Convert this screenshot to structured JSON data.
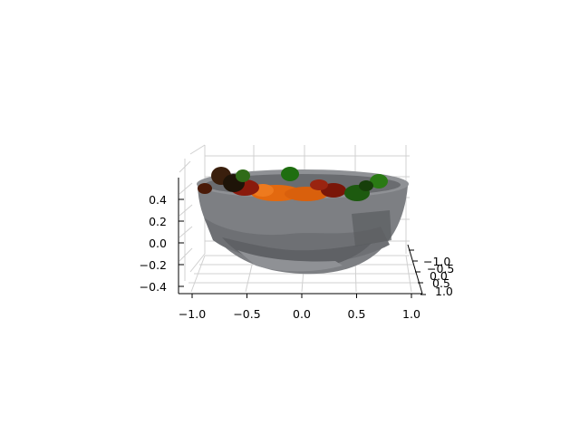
{
  "chart_data": {
    "type": "surface3d",
    "title": "",
    "xlabel": "",
    "ylabel": "",
    "zlabel": "",
    "x_ticks": [
      "−1.0",
      "−0.5",
      "0.0",
      "0.5",
      "1.0"
    ],
    "y_ticks": [
      "−1.0",
      "−0.5",
      "0.0",
      "0.5",
      "1.0"
    ],
    "z_ticks": [
      "0.4",
      "0.2",
      "0.0",
      "−0.2",
      "−0.4"
    ],
    "xlim": [
      -1.0,
      1.0
    ],
    "ylim": [
      -1.0,
      1.0
    ],
    "zlim": [
      -0.5,
      0.5
    ],
    "grid": true,
    "objects": [
      {
        "name": "bowl",
        "color": "#7d7f83"
      },
      {
        "name": "oranges",
        "color": "#e3690f"
      },
      {
        "name": "red fruit",
        "color": "#8a1a0c"
      },
      {
        "name": "green fruit",
        "color": "#1f6e10"
      },
      {
        "name": "dark fruit",
        "color": "#2b1a0c"
      }
    ],
    "colors": {
      "bowl_dark": "#5e6064",
      "bowl_mid": "#7d7f83",
      "bowl_light": "#9a9ca0",
      "rim": "#8f9195",
      "orange": "#e3690f",
      "red": "#8a1a0c",
      "green": "#1f6e10",
      "dark": "#2b1a0c",
      "grid": "#d0d0d0",
      "axis": "#000000"
    }
  }
}
